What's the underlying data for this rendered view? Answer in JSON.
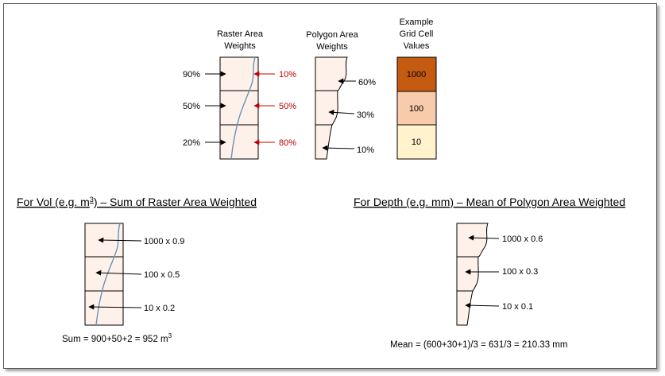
{
  "titles": {
    "raster": [
      "Raster Area",
      "Weights"
    ],
    "polygon": [
      "Polygon Area",
      "Weights"
    ],
    "example": [
      "Example",
      "Grid Cell",
      "Values"
    ]
  },
  "raster_weights": {
    "inside": [
      "90%",
      "50%",
      "20%"
    ],
    "outside": [
      "10%",
      "50%",
      "80%"
    ]
  },
  "polygon_weights": [
    "60%",
    "30%",
    "10%"
  ],
  "grid_cells": [
    {
      "value": "1000",
      "color": "#c55a11"
    },
    {
      "value": "100",
      "color": "#f8cbad"
    },
    {
      "value": "10",
      "color": "#fff2cc"
    }
  ],
  "section_vol": {
    "heading_prefix": "For Vol (e.g. m",
    "heading_sup": "3",
    "heading_suffix": ") – Sum of Raster Area Weighted",
    "items": [
      "1000 x 0.9",
      "100 x 0.5",
      "10 x 0.2"
    ],
    "result_prefix": "Sum = 900+50+2 = 952 m",
    "result_sup": "3"
  },
  "section_depth": {
    "heading": "For Depth (e.g. mm) – Mean of Polygon Area Weighted",
    "items": [
      "1000 x 0.6",
      "100 x 0.3",
      "10 x 0.1"
    ],
    "result": "Mean = (600+30+1)/3 = 631/3 = 210.33 mm"
  },
  "colors": {
    "cell_fill": "#fdf1ea",
    "river": "#6e92b8",
    "red_arrow": "#c00000",
    "frame": "#5a5a5a"
  }
}
